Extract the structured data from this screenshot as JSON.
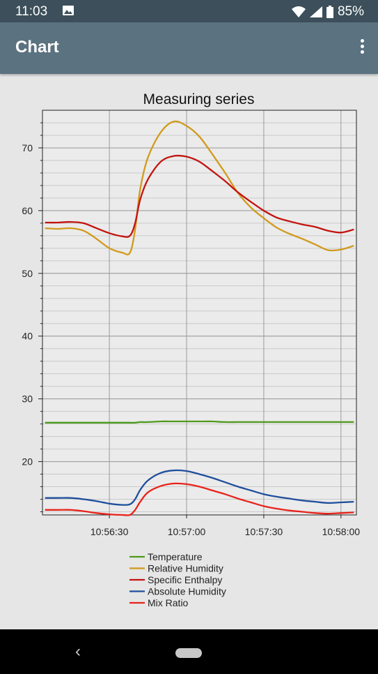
{
  "status_bar": {
    "time": "11:03",
    "battery_text": "85%",
    "icons": [
      "image-icon",
      "wifi-icon",
      "signal-icon",
      "battery-icon"
    ]
  },
  "app_bar": {
    "title": "Chart",
    "menu_icon": "overflow-menu-icon"
  },
  "nav_bar": {
    "icons": [
      "back-icon",
      "home-pill-icon"
    ]
  },
  "chart_data": {
    "type": "line",
    "title": "Measuring series",
    "xlabel": "",
    "ylabel": "",
    "xlim": [
      "10:56:04",
      "10:58:06"
    ],
    "ylim": [
      11.5,
      76
    ],
    "grid": true,
    "legend_position": "bottom",
    "x_ticks": [
      "10:56:30",
      "10:57:00",
      "10:57:30",
      "10:58:00"
    ],
    "y_ticks": [
      20,
      30,
      40,
      50,
      60,
      70
    ],
    "x": [
      "10:56:05",
      "10:56:10",
      "10:56:15",
      "10:56:20",
      "10:56:25",
      "10:56:30",
      "10:56:35",
      "10:56:38",
      "10:56:40",
      "10:56:42",
      "10:56:45",
      "10:56:50",
      "10:56:55",
      "10:57:00",
      "10:57:05",
      "10:57:10",
      "10:57:15",
      "10:57:20",
      "10:57:25",
      "10:57:30",
      "10:57:35",
      "10:57:40",
      "10:57:45",
      "10:57:50",
      "10:57:55",
      "10:58:00",
      "10:58:05"
    ],
    "series": [
      {
        "name": "Temperature",
        "color": "#4e9a1c",
        "values": [
          26.2,
          26.2,
          26.2,
          26.2,
          26.2,
          26.2,
          26.2,
          26.2,
          26.2,
          26.3,
          26.3,
          26.4,
          26.4,
          26.4,
          26.4,
          26.4,
          26.3,
          26.3,
          26.3,
          26.3,
          26.3,
          26.3,
          26.3,
          26.3,
          26.3,
          26.3,
          26.3
        ]
      },
      {
        "name": "Relative Humidity",
        "color": "#d19a1a",
        "values": [
          57.2,
          57.1,
          57.2,
          56.8,
          55.5,
          54.0,
          53.3,
          53.3,
          57.0,
          63.5,
          68.5,
          72.5,
          74.2,
          73.5,
          71.8,
          69.0,
          66.0,
          62.8,
          60.5,
          58.8,
          57.3,
          56.3,
          55.5,
          54.6,
          53.7,
          53.8,
          54.4
        ]
      },
      {
        "name": "Specific Enthalpy",
        "color": "#c3140f",
        "values": [
          58.1,
          58.1,
          58.2,
          58.0,
          57.2,
          56.4,
          55.9,
          56.0,
          58.0,
          61.8,
          65.0,
          67.8,
          68.7,
          68.6,
          67.8,
          66.3,
          64.7,
          62.9,
          61.4,
          60.0,
          58.9,
          58.3,
          57.8,
          57.4,
          56.8,
          56.5,
          57.0
        ]
      },
      {
        "name": "Absolute Humidity",
        "color": "#1f4f9c",
        "values": [
          14.2,
          14.2,
          14.2,
          14.0,
          13.7,
          13.3,
          13.1,
          13.2,
          14.0,
          15.5,
          17.0,
          18.2,
          18.6,
          18.5,
          18.0,
          17.4,
          16.7,
          16.0,
          15.4,
          14.8,
          14.4,
          14.1,
          13.8,
          13.6,
          13.4,
          13.5,
          13.6
        ]
      },
      {
        "name": "Mix Ratio",
        "color": "#e8231a",
        "values": [
          12.3,
          12.3,
          12.3,
          12.1,
          11.8,
          11.6,
          11.5,
          11.5,
          12.3,
          13.6,
          15.1,
          16.1,
          16.5,
          16.4,
          16.0,
          15.4,
          14.8,
          14.1,
          13.5,
          12.9,
          12.5,
          12.2,
          12.0,
          11.8,
          11.7,
          11.8,
          11.9
        ]
      }
    ]
  }
}
